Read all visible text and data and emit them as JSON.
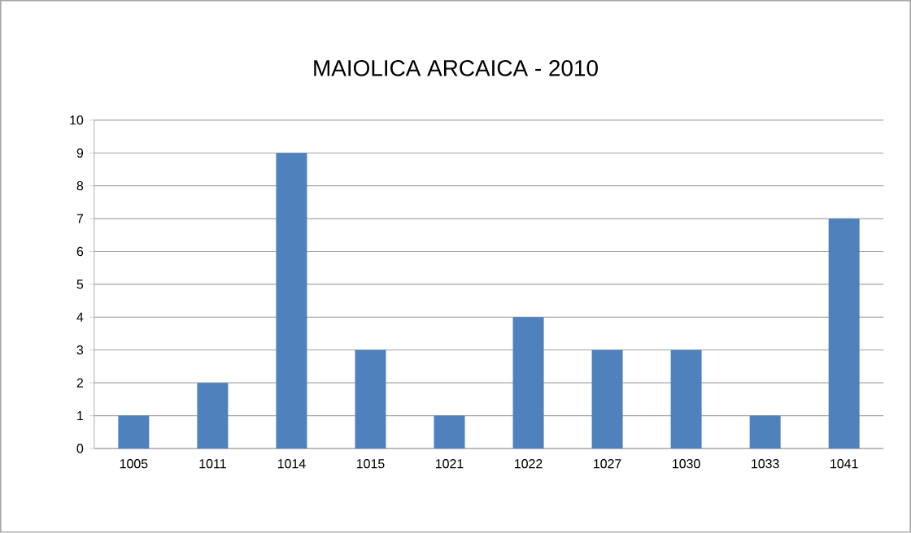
{
  "chart_data": {
    "type": "bar",
    "title": "MAIOLICA ARCAICA - 2010",
    "categories": [
      "1005",
      "1011",
      "1014",
      "1015",
      "1021",
      "1022",
      "1027",
      "1030",
      "1033",
      "1041"
    ],
    "values": [
      1,
      2,
      9,
      3,
      1,
      4,
      3,
      3,
      1,
      7
    ],
    "color": "#4f81bd",
    "ylim": [
      0,
      10
    ],
    "yticks": [
      0,
      1,
      2,
      3,
      4,
      5,
      6,
      7,
      8,
      9,
      10
    ],
    "grid": "y"
  }
}
